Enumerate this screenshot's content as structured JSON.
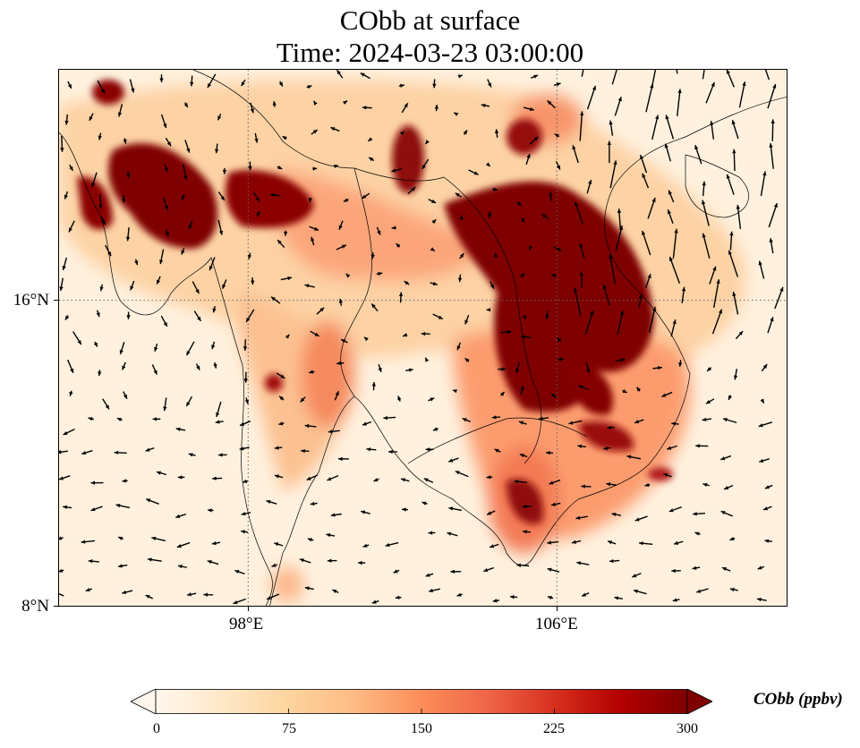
{
  "title_line1": "CObb at surface",
  "title_line2": "Time: 2024-03-23 03:00:00",
  "axes": {
    "lon_ticks": [
      "98°E",
      "106°E"
    ],
    "lat_ticks": [
      "16°N",
      "8°N"
    ],
    "lon_values": [
      98,
      106
    ],
    "lat_values": [
      16,
      8
    ],
    "lon_range": [
      93.1,
      112.0
    ],
    "lat_range": [
      8.0,
      22.0
    ]
  },
  "colorbar": {
    "title": "CObb (ppbv)",
    "tick_labels": [
      "0",
      "75",
      "150",
      "225",
      "300"
    ],
    "range": [
      0,
      300
    ],
    "colormap": "OrRd",
    "colors": [
      "#fff7ec",
      "#fee8c8",
      "#fdd49e",
      "#fdbb84",
      "#fc8d59",
      "#ef6548",
      "#d7301f",
      "#b30000",
      "#7f0000"
    ]
  },
  "map_layers": {
    "field": "CObb surface concentration",
    "vectors": "wind",
    "coastlines": true,
    "gridlines": "dotted"
  }
}
